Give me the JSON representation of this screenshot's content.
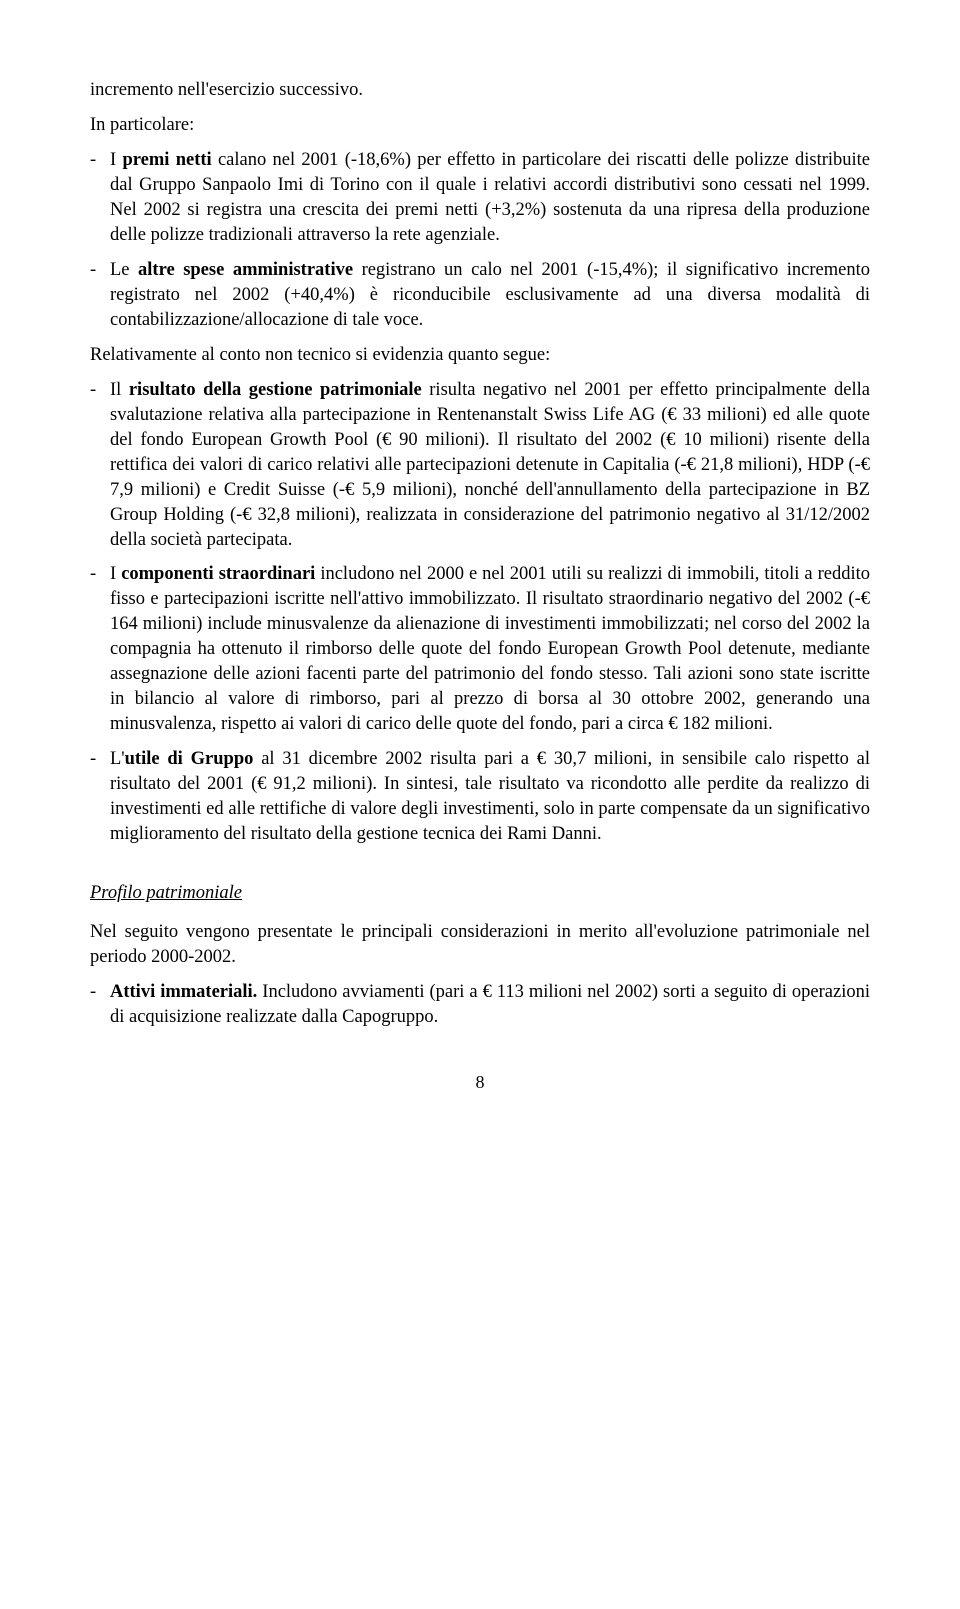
{
  "p_first": "incremento nell'esercizio successivo.",
  "p_intro": "In particolare:",
  "b1": "I premi netti calano nel 2001 (-18,6%) per effetto in particolare dei riscatti delle polizze distribuite dal Gruppo Sanpaolo Imi di Torino con il quale i relativi accordi distributivi sono cessati nel 1999. Nel 2002 si registra una crescita dei premi netti (+3,2%) sostenuta da una ripresa della produzione delle polizze tradizionali attraverso la rete agenziale.",
  "b1_label": "premi netti",
  "b2_pre": "Le ",
  "b2_label": "altre spese amministrative",
  "b2_post": " registrano un calo nel 2001 (-15,4%); il significativo incremento registrato nel 2002 (+40,4%) è riconducibile esclusivamente ad una diversa modalità di contabilizzazione/allocazione di tale voce.",
  "p_rel": "Relativamente al conto non tecnico si evidenzia quanto segue:",
  "b3_pre": "Il ",
  "b3_label": "risultato della gestione patrimoniale",
  "b3_post": " risulta negativo nel 2001 per effetto principalmente della svalutazione relativa alla partecipazione in Rentenanstalt Swiss Life AG (€ 33 milioni) ed alle quote del fondo European Growth Pool (€ 90 milioni). Il risultato del 2002 (€ 10 milioni) risente della rettifica dei valori di carico relativi alle partecipazioni detenute in Capitalia (-€ 21,8 milioni), HDP (-€ 7,9 milioni) e Credit Suisse (-€ 5,9 milioni), nonché dell'annullamento della partecipazione in BZ Group Holding (-€ 32,8 milioni), realizzata in considerazione del patrimonio negativo al 31/12/2002 della società partecipata.",
  "b4_pre": "I ",
  "b4_label": "componenti straordinari",
  "b4_post": " includono nel 2000 e nel 2001 utili su realizzi di immobili, titoli a reddito fisso e partecipazioni iscritte nell'attivo immobilizzato. Il risultato straordinario negativo del 2002 (-€ 164 milioni) include minusvalenze da alienazione di investimenti immobilizzati; nel corso del 2002 la compagnia ha ottenuto il rimborso delle quote del fondo European Growth Pool detenute, mediante assegnazione delle azioni facenti parte del patrimonio del fondo stesso. Tali azioni sono state iscritte in bilancio al valore di rimborso, pari al prezzo di borsa al 30 ottobre 2002, generando una minusvalenza, rispetto ai valori di carico delle quote del fondo, pari a circa € 182 milioni.",
  "b5_pre": "L'",
  "b5_label": "utile di Gruppo",
  "b5_post": " al 31 dicembre 2002 risulta pari a € 30,7 milioni, in sensibile calo rispetto al risultato del 2001 (€ 91,2 milioni). In sintesi, tale risultato va ricondotto alle perdite da realizzo di investimenti ed alle rettifiche di valore degli investimenti, solo in parte compensate da un significativo miglioramento del risultato della gestione tecnica dei Rami Danni.",
  "heading": "Profilo patrimoniale",
  "p_seguito": "Nel seguito vengono presentate le principali considerazioni in merito all'evoluzione patrimoniale nel periodo 2000-2002.",
  "b6_label": "Attivi immateriali.",
  "b6_post": " Includono avviamenti (pari a € 113 milioni nel 2002) sorti a seguito di operazioni di acquisizione realizzate dalla Capogruppo.",
  "dash": "-",
  "page_number": "8"
}
